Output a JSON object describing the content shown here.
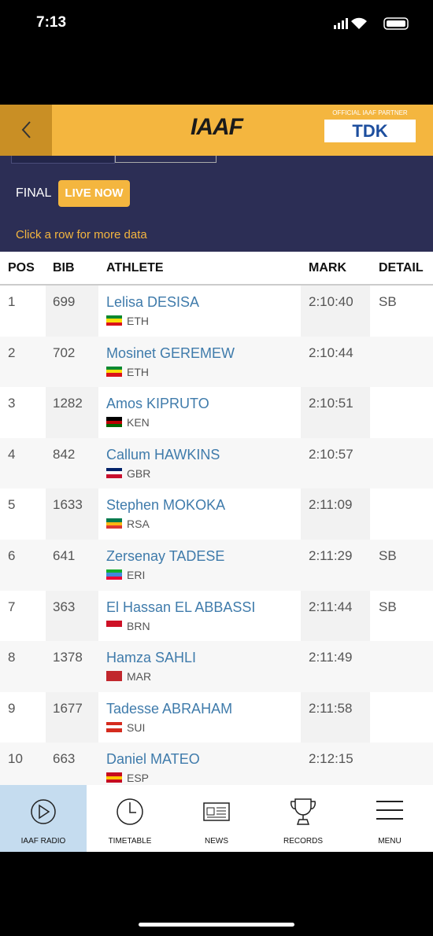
{
  "status": {
    "time": "7:13"
  },
  "header": {
    "logo": "IAAF",
    "partner_label": "OFFICIAL IAAF PARTNER",
    "partner": "TDK"
  },
  "event": {
    "round": "FINAL",
    "status": "LIVE NOW",
    "hint": "Click a row for more data"
  },
  "table": {
    "columns": [
      "POS",
      "BIB",
      "ATHLETE",
      "MARK",
      "DETAIL"
    ],
    "rows": [
      {
        "pos": 1,
        "bib": 699,
        "athlete": "Lelisa DESISA",
        "country": "ETH",
        "mark": "2:10:40",
        "detail": "SB"
      },
      {
        "pos": 2,
        "bib": 702,
        "athlete": "Mosinet GEREMEW",
        "country": "ETH",
        "mark": "2:10:44"
      },
      {
        "pos": 3,
        "bib": 1282,
        "athlete": "Amos KIPRUTO",
        "country": "KEN",
        "mark": "2:10:51"
      },
      {
        "pos": 4,
        "bib": 842,
        "athlete": "Callum HAWKINS",
        "country": "GBR",
        "mark": "2:10:57"
      },
      {
        "pos": 5,
        "bib": 1633,
        "athlete": "Stephen MOKOKA",
        "country": "RSA",
        "mark": "2:11:09"
      },
      {
        "pos": 6,
        "bib": 641,
        "athlete": "Zersenay TADESE",
        "country": "ERI",
        "mark": "2:11:29",
        "detail": "SB"
      },
      {
        "pos": 7,
        "bib": 363,
        "athlete": "El Hassan EL ABBASSI",
        "country": "BRN",
        "mark": "2:11:44",
        "detail": "SB"
      },
      {
        "pos": 8,
        "bib": 1378,
        "athlete": "Hamza SAHLI",
        "country": "MAR",
        "mark": "2:11:49"
      },
      {
        "pos": 9,
        "bib": 1677,
        "athlete": "Tadesse ABRAHAM",
        "country": "SUI",
        "mark": "2:11:58"
      },
      {
        "pos": 10,
        "bib": 663,
        "athlete": "Daniel MATEO",
        "country": "ESP",
        "mark": "2:12:15"
      }
    ]
  },
  "nav": {
    "items": [
      "IAAF RADIO",
      "TIMETABLE",
      "NEWS",
      "RECORDS",
      "MENU"
    ]
  }
}
